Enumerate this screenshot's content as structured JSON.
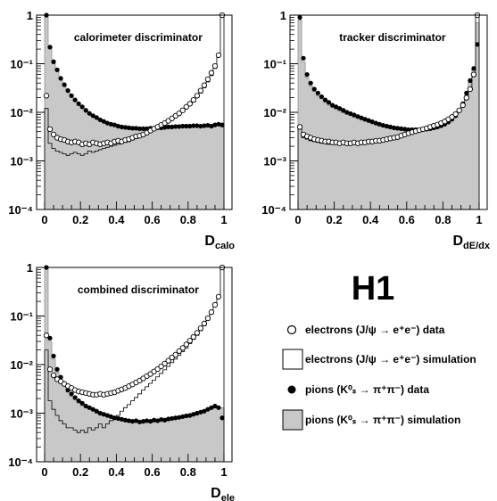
{
  "figure": {
    "logo": "H1",
    "legend": [
      {
        "label": "electrons (J/ψ → e⁺e⁻) data",
        "style": "open-circle"
      },
      {
        "label": "electrons (J/ψ → e⁺e⁻) simulation",
        "style": "open-box"
      },
      {
        "label": "pions (K⁰ₛ → π⁺π⁻) data",
        "style": "filled-circle"
      },
      {
        "label": "pions (K⁰ₛ → π⁺π⁻) simulation",
        "style": "filled-box"
      }
    ],
    "colors": {
      "pion_sim_fill": "#c8c8c8",
      "axis": "#000000"
    }
  },
  "chart_data": [
    {
      "type": "histogram",
      "title": "calorimeter discriminator",
      "xlabel": "D",
      "xlabel_sub": "calo",
      "xlim": [
        0,
        1
      ],
      "ylim": [
        0.0001,
        1
      ],
      "yscale": "log",
      "xticks": [
        "0",
        "0.2",
        "0.4",
        "0.6",
        "0.8",
        "1"
      ],
      "yticks": [
        "10⁻⁴",
        "10⁻³",
        "10⁻²",
        "10⁻¹",
        "1"
      ],
      "x": [
        0.01,
        0.03,
        0.05,
        0.07,
        0.09,
        0.11,
        0.13,
        0.15,
        0.17,
        0.19,
        0.21,
        0.23,
        0.25,
        0.27,
        0.29,
        0.31,
        0.33,
        0.35,
        0.37,
        0.39,
        0.41,
        0.43,
        0.45,
        0.47,
        0.49,
        0.51,
        0.53,
        0.55,
        0.57,
        0.59,
        0.61,
        0.63,
        0.65,
        0.67,
        0.69,
        0.71,
        0.73,
        0.75,
        0.77,
        0.79,
        0.81,
        0.83,
        0.85,
        0.87,
        0.89,
        0.91,
        0.93,
        0.95,
        0.97,
        0.99
      ],
      "series": [
        {
          "name": "electrons (J/ψ → e⁺e⁻) data",
          "style": "open-circle",
          "values": [
            0.022,
            0.0045,
            0.0035,
            0.003,
            0.0028,
            0.0027,
            0.0025,
            0.0024,
            0.0025,
            0.0024,
            0.0022,
            0.0023,
            0.0022,
            0.0024,
            0.0023,
            0.0022,
            0.0023,
            0.0024,
            0.0023,
            0.0025,
            0.0026,
            0.0025,
            0.0027,
            0.0028,
            0.003,
            0.0032,
            0.0033,
            0.0035,
            0.0038,
            0.0042,
            0.0046,
            0.005,
            0.0055,
            0.006,
            0.0067,
            0.0075,
            0.0085,
            0.0095,
            0.011,
            0.013,
            0.015,
            0.018,
            0.022,
            0.028,
            0.036,
            0.048,
            0.065,
            0.09,
            0.15,
            1.0
          ]
        },
        {
          "name": "electrons (J/ψ → e⁺e⁻) simulation",
          "style": "open-box",
          "values": [
            0.012,
            0.0023,
            0.0018,
            0.0016,
            0.0015,
            0.0014,
            0.0013,
            0.0014,
            0.0015,
            0.0014,
            0.0013,
            0.0014,
            0.0016,
            0.0015,
            0.0016,
            0.0017,
            0.0018,
            0.0019,
            0.002,
            0.0021,
            0.0022,
            0.0023,
            0.0024,
            0.0025,
            0.0027,
            0.0029,
            0.0031,
            0.0033,
            0.0036,
            0.004,
            0.0044,
            0.0048,
            0.0052,
            0.0058,
            0.0065,
            0.0073,
            0.0082,
            0.0092,
            0.0105,
            0.012,
            0.014,
            0.0165,
            0.02,
            0.025,
            0.032,
            0.042,
            0.057,
            0.08,
            0.14,
            1.0
          ]
        },
        {
          "name": "pions (K⁰ₛ → π⁺π⁻) data",
          "style": "filled-circle",
          "values": [
            1.0,
            0.22,
            0.11,
            0.075,
            0.05,
            0.037,
            0.028,
            0.022,
            0.018,
            0.015,
            0.013,
            0.011,
            0.0095,
            0.0085,
            0.0078,
            0.007,
            0.0065,
            0.006,
            0.0057,
            0.0055,
            0.0052,
            0.005,
            0.0049,
            0.0048,
            0.0047,
            0.0047,
            0.0046,
            0.0046,
            0.0046,
            0.0047,
            0.0047,
            0.0048,
            0.0048,
            0.0049,
            0.005,
            0.005,
            0.0051,
            0.0051,
            0.0052,
            0.0052,
            0.0052,
            0.0053,
            0.0053,
            0.0052,
            0.0053,
            0.0054,
            0.0052,
            0.0055,
            0.0057,
            0.0055
          ]
        },
        {
          "name": "pions (K⁰ₛ → π⁺π⁻) simulation",
          "style": "filled-box",
          "values": [
            1.0,
            0.2,
            0.1,
            0.07,
            0.048,
            0.035,
            0.027,
            0.021,
            0.017,
            0.014,
            0.012,
            0.0105,
            0.0092,
            0.0082,
            0.0075,
            0.0068,
            0.0063,
            0.0058,
            0.0055,
            0.0053,
            0.005,
            0.0049,
            0.0048,
            0.0047,
            0.0046,
            0.0046,
            0.0045,
            0.0045,
            0.0045,
            0.0046,
            0.0046,
            0.0047,
            0.0047,
            0.0048,
            0.0049,
            0.0049,
            0.005,
            0.005,
            0.0051,
            0.0051,
            0.0051,
            0.0052,
            0.0052,
            0.0051,
            0.0052,
            0.0053,
            0.0051,
            0.0054,
            0.0056,
            0.005
          ]
        }
      ]
    },
    {
      "type": "histogram",
      "title": "tracker discriminator",
      "xlabel": "D",
      "xlabel_sub": "dE/dx",
      "xlim": [
        0,
        1
      ],
      "ylim": [
        0.0001,
        1
      ],
      "yscale": "log",
      "xticks": [
        "0",
        "0.2",
        "0.4",
        "0.6",
        "0.8",
        "1"
      ],
      "yticks": [
        "10⁻⁴",
        "10⁻³",
        "10⁻²",
        "10⁻¹",
        "1"
      ],
      "x": [
        0.01,
        0.03,
        0.05,
        0.07,
        0.09,
        0.11,
        0.13,
        0.15,
        0.17,
        0.19,
        0.21,
        0.23,
        0.25,
        0.27,
        0.29,
        0.31,
        0.33,
        0.35,
        0.37,
        0.39,
        0.41,
        0.43,
        0.45,
        0.47,
        0.49,
        0.51,
        0.53,
        0.55,
        0.57,
        0.59,
        0.61,
        0.63,
        0.65,
        0.67,
        0.69,
        0.71,
        0.73,
        0.75,
        0.77,
        0.79,
        0.81,
        0.83,
        0.85,
        0.87,
        0.89,
        0.91,
        0.93,
        0.95,
        0.97,
        0.99
      ],
      "series": [
        {
          "name": "electrons (J/ψ → e⁺e⁻) data",
          "style": "open-circle",
          "values": [
            0.005,
            0.0035,
            0.0032,
            0.003,
            0.0028,
            0.0027,
            0.0026,
            0.0025,
            0.0025,
            0.0024,
            0.0024,
            0.0023,
            0.0024,
            0.0023,
            0.0023,
            0.0024,
            0.0023,
            0.0024,
            0.0024,
            0.0025,
            0.0025,
            0.0026,
            0.0026,
            0.0027,
            0.0028,
            0.0029,
            0.003,
            0.0031,
            0.0033,
            0.0035,
            0.0037,
            0.0039,
            0.0041,
            0.0043,
            0.0045,
            0.0047,
            0.005,
            0.0053,
            0.0056,
            0.006,
            0.0065,
            0.0072,
            0.008,
            0.0092,
            0.011,
            0.014,
            0.02,
            0.03,
            0.06,
            1.0
          ]
        },
        {
          "name": "electrons (J/ψ → e⁺e⁻) simulation",
          "style": "open-box",
          "values": [
            0.0045,
            0.003,
            0.0028,
            0.0026,
            0.0025,
            0.0024,
            0.0023,
            0.0023,
            0.0022,
            0.0022,
            0.0022,
            0.0022,
            0.0022,
            0.0022,
            0.0022,
            0.0023,
            0.0023,
            0.0023,
            0.0024,
            0.0024,
            0.0025,
            0.0025,
            0.0026,
            0.0027,
            0.0028,
            0.0029,
            0.003,
            0.0031,
            0.0032,
            0.0034,
            0.0036,
            0.0038,
            0.004,
            0.0042,
            0.0044,
            0.0046,
            0.0049,
            0.0052,
            0.0055,
            0.0059,
            0.0064,
            0.007,
            0.0078,
            0.009,
            0.0108,
            0.0135,
            0.019,
            0.028,
            0.055,
            1.0
          ]
        },
        {
          "name": "pions (K⁰ₛ → π⁺π⁻) data",
          "style": "filled-circle",
          "values": [
            0.9,
            0.13,
            0.06,
            0.04,
            0.03,
            0.025,
            0.021,
            0.018,
            0.016,
            0.014,
            0.013,
            0.012,
            0.011,
            0.01,
            0.0094,
            0.0088,
            0.0082,
            0.0077,
            0.0072,
            0.0068,
            0.0064,
            0.006,
            0.0057,
            0.0054,
            0.0052,
            0.005,
            0.0048,
            0.0047,
            0.0046,
            0.0045,
            0.0044,
            0.0044,
            0.0044,
            0.0044,
            0.0045,
            0.0045,
            0.0046,
            0.0048,
            0.005,
            0.0053,
            0.0057,
            0.0063,
            0.0072,
            0.0085,
            0.011,
            0.015,
            0.025,
            0.045,
            0.08,
            0.25
          ]
        },
        {
          "name": "pions (K⁰ₛ → π⁺π⁻) simulation",
          "style": "filled-box",
          "values": [
            0.8,
            0.11,
            0.052,
            0.035,
            0.027,
            0.022,
            0.019,
            0.016,
            0.014,
            0.0125,
            0.0115,
            0.0105,
            0.0097,
            0.009,
            0.0085,
            0.008,
            0.0075,
            0.007,
            0.0066,
            0.0062,
            0.0058,
            0.0055,
            0.0052,
            0.005,
            0.0048,
            0.0046,
            0.0045,
            0.0044,
            0.0043,
            0.0042,
            0.0041,
            0.0041,
            0.0041,
            0.0041,
            0.0042,
            0.0042,
            0.0043,
            0.0045,
            0.0047,
            0.005,
            0.0054,
            0.006,
            0.0068,
            0.008,
            0.0103,
            0.014,
            0.023,
            0.042,
            0.075,
            0.7
          ]
        }
      ]
    },
    {
      "type": "histogram",
      "title": "combined discriminator",
      "xlabel": "D",
      "xlabel_sub": "ele",
      "xlim": [
        0,
        1
      ],
      "ylim": [
        0.0001,
        1
      ],
      "yscale": "log",
      "xticks": [
        "0",
        "0.2",
        "0.4",
        "0.6",
        "0.8",
        "1"
      ],
      "yticks": [
        "10⁻⁴",
        "10⁻³",
        "10⁻²",
        "10⁻¹",
        "1"
      ],
      "x": [
        0.01,
        0.03,
        0.05,
        0.07,
        0.09,
        0.11,
        0.13,
        0.15,
        0.17,
        0.19,
        0.21,
        0.23,
        0.25,
        0.27,
        0.29,
        0.31,
        0.33,
        0.35,
        0.37,
        0.39,
        0.41,
        0.43,
        0.45,
        0.47,
        0.49,
        0.51,
        0.53,
        0.55,
        0.57,
        0.59,
        0.61,
        0.63,
        0.65,
        0.67,
        0.69,
        0.71,
        0.73,
        0.75,
        0.77,
        0.79,
        0.81,
        0.83,
        0.85,
        0.87,
        0.89,
        0.91,
        0.93,
        0.95,
        0.97,
        0.99
      ],
      "series": [
        {
          "name": "electrons (J/ψ → e⁺e⁻) data",
          "style": "open-circle",
          "values": [
            0.04,
            0.008,
            0.006,
            0.005,
            0.0045,
            0.004,
            0.0036,
            0.0033,
            0.003,
            0.0028,
            0.0027,
            0.0026,
            0.0025,
            0.0024,
            0.0024,
            0.0025,
            0.0024,
            0.0025,
            0.0026,
            0.0027,
            0.0029,
            0.0031,
            0.0033,
            0.0036,
            0.0039,
            0.0043,
            0.0047,
            0.0052,
            0.0058,
            0.0064,
            0.0072,
            0.0081,
            0.0092,
            0.0105,
            0.012,
            0.014,
            0.016,
            0.019,
            0.022,
            0.026,
            0.031,
            0.037,
            0.045,
            0.056,
            0.07,
            0.09,
            0.12,
            0.17,
            0.25,
            1.0
          ]
        },
        {
          "name": "electrons (J/ψ → e⁺e⁻) simulation",
          "style": "open-box",
          "values": [
            0.02,
            0.0018,
            0.0012,
            0.0009,
            0.0007,
            0.0006,
            0.0005,
            0.0005,
            0.00045,
            0.0004,
            0.00045,
            0.0004,
            0.0005,
            0.00045,
            0.0005,
            0.0006,
            0.0005,
            0.0006,
            0.0007,
            0.0008,
            0.0009,
            0.0011,
            0.0013,
            0.0015,
            0.0018,
            0.0021,
            0.0025,
            0.003,
            0.0035,
            0.0041,
            0.0048,
            0.0056,
            0.0066,
            0.0078,
            0.0092,
            0.011,
            0.013,
            0.0155,
            0.0185,
            0.022,
            0.027,
            0.033,
            0.04,
            0.05,
            0.063,
            0.082,
            0.11,
            0.16,
            0.24,
            1.0
          ]
        },
        {
          "name": "pions (K⁰ₛ → π⁺π⁻) data",
          "style": "filled-circle",
          "values": [
            1.0,
            0.035,
            0.015,
            0.008,
            0.0055,
            0.004,
            0.003,
            0.0025,
            0.0021,
            0.0018,
            0.0016,
            0.0014,
            0.0013,
            0.0012,
            0.0011,
            0.001,
            0.00095,
            0.0009,
            0.00085,
            0.0008,
            0.00078,
            0.00075,
            0.00072,
            0.0007,
            0.00068,
            0.0007,
            0.00066,
            0.00068,
            0.0007,
            0.00068,
            0.00072,
            0.0007,
            0.00074,
            0.00072,
            0.00076,
            0.00078,
            0.0008,
            0.00082,
            0.00085,
            0.00088,
            0.0009,
            0.00095,
            0.001,
            0.00105,
            0.0011,
            0.0012,
            0.0013,
            0.0014,
            0.0013,
            0.0008
          ]
        },
        {
          "name": "pions (K⁰ₛ → π⁺π⁻) simulation",
          "style": "filled-box",
          "values": [
            1.0,
            0.03,
            0.013,
            0.007,
            0.0048,
            0.0036,
            0.0027,
            0.0022,
            0.0019,
            0.0016,
            0.0014,
            0.0013,
            0.0012,
            0.0011,
            0.001,
            0.00092,
            0.00088,
            0.00084,
            0.0008,
            0.00076,
            0.00073,
            0.0007,
            0.00068,
            0.00066,
            0.00064,
            0.00066,
            0.00063,
            0.00065,
            0.00067,
            0.00065,
            0.00069,
            0.00067,
            0.00071,
            0.0007,
            0.00073,
            0.00075,
            0.00077,
            0.0008,
            0.00082,
            0.00085,
            0.00087,
            0.00092,
            0.00097,
            0.001,
            0.00107,
            0.00115,
            0.00125,
            0.00135,
            0.00125,
            0.0013
          ]
        }
      ]
    }
  ]
}
